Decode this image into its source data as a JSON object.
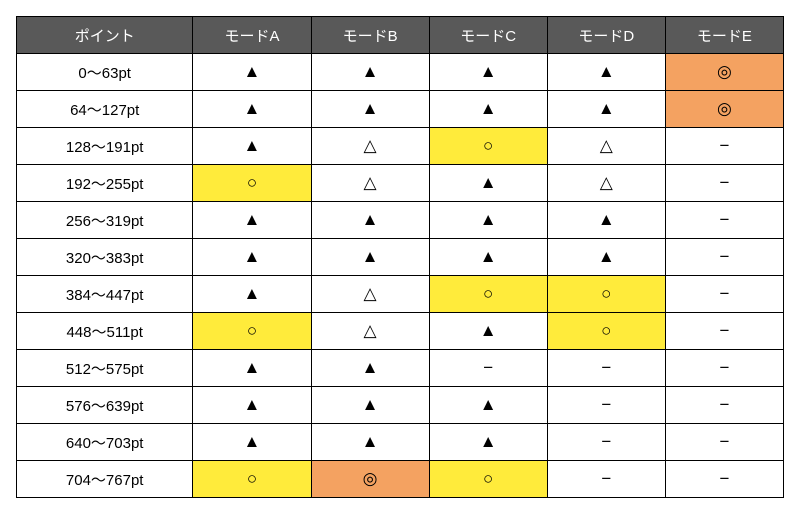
{
  "headers": [
    "ポイント",
    "モードA",
    "モードB",
    "モードC",
    "モードD",
    "モードE"
  ],
  "colors": {
    "header_bg": "#595959",
    "header_fg": "#ffffff",
    "hl_yellow": "#ffeb3b",
    "hl_orange": "#f4a261",
    "border": "#000000",
    "bg": "#ffffff"
  },
  "symbols": {
    "filled_tri": "▲",
    "open_tri": "△",
    "circle": "○",
    "double_circle": "◎",
    "dash": "−"
  },
  "rows": [
    {
      "label": "0〜63pt",
      "cells": [
        {
          "sym": "filled_tri"
        },
        {
          "sym": "filled_tri"
        },
        {
          "sym": "filled_tri"
        },
        {
          "sym": "filled_tri"
        },
        {
          "sym": "double_circle",
          "hl": "orange"
        }
      ]
    },
    {
      "label": "64〜127pt",
      "cells": [
        {
          "sym": "filled_tri"
        },
        {
          "sym": "filled_tri"
        },
        {
          "sym": "filled_tri"
        },
        {
          "sym": "filled_tri"
        },
        {
          "sym": "double_circle",
          "hl": "orange"
        }
      ]
    },
    {
      "label": "128〜191pt",
      "cells": [
        {
          "sym": "filled_tri"
        },
        {
          "sym": "open_tri"
        },
        {
          "sym": "circle",
          "hl": "yellow"
        },
        {
          "sym": "open_tri"
        },
        {
          "sym": "dash"
        }
      ]
    },
    {
      "label": "192〜255pt",
      "cells": [
        {
          "sym": "circle",
          "hl": "yellow"
        },
        {
          "sym": "open_tri"
        },
        {
          "sym": "filled_tri"
        },
        {
          "sym": "open_tri"
        },
        {
          "sym": "dash"
        }
      ]
    },
    {
      "label": "256〜319pt",
      "cells": [
        {
          "sym": "filled_tri"
        },
        {
          "sym": "filled_tri"
        },
        {
          "sym": "filled_tri"
        },
        {
          "sym": "filled_tri"
        },
        {
          "sym": "dash"
        }
      ]
    },
    {
      "label": "320〜383pt",
      "cells": [
        {
          "sym": "filled_tri"
        },
        {
          "sym": "filled_tri"
        },
        {
          "sym": "filled_tri"
        },
        {
          "sym": "filled_tri"
        },
        {
          "sym": "dash"
        }
      ]
    },
    {
      "label": "384〜447pt",
      "cells": [
        {
          "sym": "filled_tri"
        },
        {
          "sym": "open_tri"
        },
        {
          "sym": "circle",
          "hl": "yellow"
        },
        {
          "sym": "circle",
          "hl": "yellow"
        },
        {
          "sym": "dash"
        }
      ]
    },
    {
      "label": "448〜511pt",
      "cells": [
        {
          "sym": "circle",
          "hl": "yellow"
        },
        {
          "sym": "open_tri"
        },
        {
          "sym": "filled_tri"
        },
        {
          "sym": "circle",
          "hl": "yellow"
        },
        {
          "sym": "dash"
        }
      ]
    },
    {
      "label": "512〜575pt",
      "cells": [
        {
          "sym": "filled_tri"
        },
        {
          "sym": "filled_tri"
        },
        {
          "sym": "dash"
        },
        {
          "sym": "dash"
        },
        {
          "sym": "dash"
        }
      ]
    },
    {
      "label": "576〜639pt",
      "cells": [
        {
          "sym": "filled_tri"
        },
        {
          "sym": "filled_tri"
        },
        {
          "sym": "filled_tri"
        },
        {
          "sym": "dash"
        },
        {
          "sym": "dash"
        }
      ]
    },
    {
      "label": "640〜703pt",
      "cells": [
        {
          "sym": "filled_tri"
        },
        {
          "sym": "filled_tri"
        },
        {
          "sym": "filled_tri"
        },
        {
          "sym": "dash"
        },
        {
          "sym": "dash"
        }
      ]
    },
    {
      "label": "704〜767pt",
      "cells": [
        {
          "sym": "circle",
          "hl": "yellow"
        },
        {
          "sym": "double_circle",
          "hl": "orange"
        },
        {
          "sym": "circle",
          "hl": "yellow"
        },
        {
          "sym": "dash"
        },
        {
          "sym": "dash"
        }
      ]
    }
  ]
}
